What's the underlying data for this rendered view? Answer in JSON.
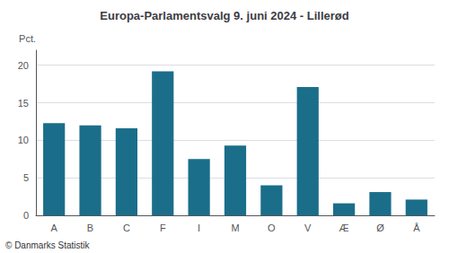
{
  "chart_data": {
    "type": "bar",
    "title": "Europa-Parlamentsvalg 9. juni 2024 - Lillerød",
    "categories": [
      "A",
      "B",
      "C",
      "F",
      "I",
      "M",
      "O",
      "V",
      "Æ",
      "Ø",
      "Å"
    ],
    "values": [
      12.3,
      12.0,
      11.6,
      19.2,
      7.5,
      9.3,
      4.0,
      17.1,
      1.6,
      3.1,
      2.1
    ],
    "color": "#1a6e8a",
    "ylabel": "Pct.",
    "ylim": [
      0,
      22
    ],
    "yticks": [
      0,
      5,
      10,
      15,
      20
    ],
    "grid": true,
    "annotations": [
      "© Danmarks Statistik"
    ]
  }
}
